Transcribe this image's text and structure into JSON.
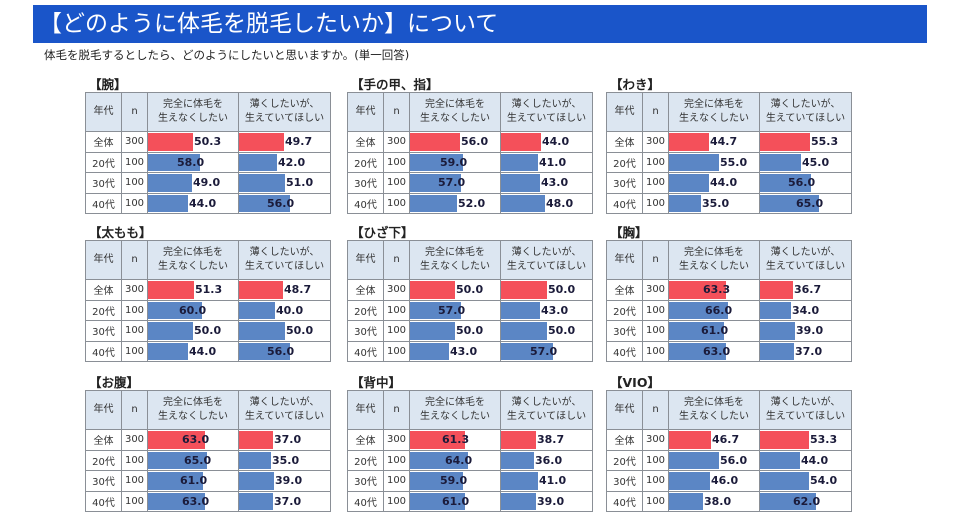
{
  "header": {
    "title": "【どのように体毛を脱毛したいか】について",
    "subtitle": "体毛を脱毛するとしたら、どのようにしたいと思いますか。(単一回答)"
  },
  "colors": {
    "banner": "#1a55c9",
    "overall_bar": "#f4505a",
    "age_bar": "#5b86c5",
    "header_bg": "#dce6f1"
  },
  "columns": {
    "age": "年代",
    "n": "n",
    "opt1_line1": "完全に体毛を",
    "opt1_line2": "生えなくしたい",
    "opt2_line1": "薄くしたいが、",
    "opt2_line2": "生えていてほしい"
  },
  "chart_data": {
    "type": "table",
    "title": "【どのように体毛を脱毛したいか】について",
    "subtitle": "体毛を脱毛するとしたら、どのようにしたいと思いますか。(単一回答)",
    "series_names": [
      "完全に体毛を生えなくしたい",
      "薄くしたいが、生えていてほしい"
    ],
    "unit": "%",
    "tables": [
      {
        "part": "【腕】",
        "rows": [
          {
            "age": "全体",
            "n": "300",
            "v1": "50.3",
            "v2": "49.7"
          },
          {
            "age": "20代",
            "n": "100",
            "v1": "58.0",
            "v2": "42.0"
          },
          {
            "age": "30代",
            "n": "100",
            "v1": "49.0",
            "v2": "51.0"
          },
          {
            "age": "40代",
            "n": "100",
            "v1": "44.0",
            "v2": "56.0"
          }
        ]
      },
      {
        "part": "【手の甲、指】",
        "rows": [
          {
            "age": "全体",
            "n": "300",
            "v1": "56.0",
            "v2": "44.0"
          },
          {
            "age": "20代",
            "n": "100",
            "v1": "59.0",
            "v2": "41.0"
          },
          {
            "age": "30代",
            "n": "100",
            "v1": "57.0",
            "v2": "43.0"
          },
          {
            "age": "40代",
            "n": "100",
            "v1": "52.0",
            "v2": "48.0"
          }
        ]
      },
      {
        "part": "【わき】",
        "rows": [
          {
            "age": "全体",
            "n": "300",
            "v1": "44.7",
            "v2": "55.3"
          },
          {
            "age": "20代",
            "n": "100",
            "v1": "55.0",
            "v2": "45.0"
          },
          {
            "age": "30代",
            "n": "100",
            "v1": "44.0",
            "v2": "56.0"
          },
          {
            "age": "40代",
            "n": "100",
            "v1": "35.0",
            "v2": "65.0"
          }
        ]
      },
      {
        "part": "【太もも】",
        "rows": [
          {
            "age": "全体",
            "n": "300",
            "v1": "51.3",
            "v2": "48.7"
          },
          {
            "age": "20代",
            "n": "100",
            "v1": "60.0",
            "v2": "40.0"
          },
          {
            "age": "30代",
            "n": "100",
            "v1": "50.0",
            "v2": "50.0"
          },
          {
            "age": "40代",
            "n": "100",
            "v1": "44.0",
            "v2": "56.0"
          }
        ]
      },
      {
        "part": "【ひざ下】",
        "rows": [
          {
            "age": "全体",
            "n": "300",
            "v1": "50.0",
            "v2": "50.0"
          },
          {
            "age": "20代",
            "n": "100",
            "v1": "57.0",
            "v2": "43.0"
          },
          {
            "age": "30代",
            "n": "100",
            "v1": "50.0",
            "v2": "50.0"
          },
          {
            "age": "40代",
            "n": "100",
            "v1": "43.0",
            "v2": "57.0"
          }
        ]
      },
      {
        "part": "【胸】",
        "rows": [
          {
            "age": "全体",
            "n": "300",
            "v1": "63.3",
            "v2": "36.7"
          },
          {
            "age": "20代",
            "n": "100",
            "v1": "66.0",
            "v2": "34.0"
          },
          {
            "age": "30代",
            "n": "100",
            "v1": "61.0",
            "v2": "39.0"
          },
          {
            "age": "40代",
            "n": "100",
            "v1": "63.0",
            "v2": "37.0"
          }
        ]
      },
      {
        "part": "【お腹】",
        "rows": [
          {
            "age": "全体",
            "n": "300",
            "v1": "63.0",
            "v2": "37.0"
          },
          {
            "age": "20代",
            "n": "100",
            "v1": "65.0",
            "v2": "35.0"
          },
          {
            "age": "30代",
            "n": "100",
            "v1": "61.0",
            "v2": "39.0"
          },
          {
            "age": "40代",
            "n": "100",
            "v1": "63.0",
            "v2": "37.0"
          }
        ]
      },
      {
        "part": "【背中】",
        "rows": [
          {
            "age": "全体",
            "n": "300",
            "v1": "61.3",
            "v2": "38.7"
          },
          {
            "age": "20代",
            "n": "100",
            "v1": "64.0",
            "v2": "36.0"
          },
          {
            "age": "30代",
            "n": "100",
            "v1": "59.0",
            "v2": "41.0"
          },
          {
            "age": "40代",
            "n": "100",
            "v1": "61.0",
            "v2": "39.0"
          }
        ]
      },
      {
        "part": "【VIO】",
        "rows": [
          {
            "age": "全体",
            "n": "300",
            "v1": "46.7",
            "v2": "53.3"
          },
          {
            "age": "20代",
            "n": "100",
            "v1": "56.0",
            "v2": "44.0"
          },
          {
            "age": "30代",
            "n": "100",
            "v1": "46.0",
            "v2": "54.0"
          },
          {
            "age": "40代",
            "n": "100",
            "v1": "38.0",
            "v2": "62.0"
          }
        ]
      }
    ]
  }
}
